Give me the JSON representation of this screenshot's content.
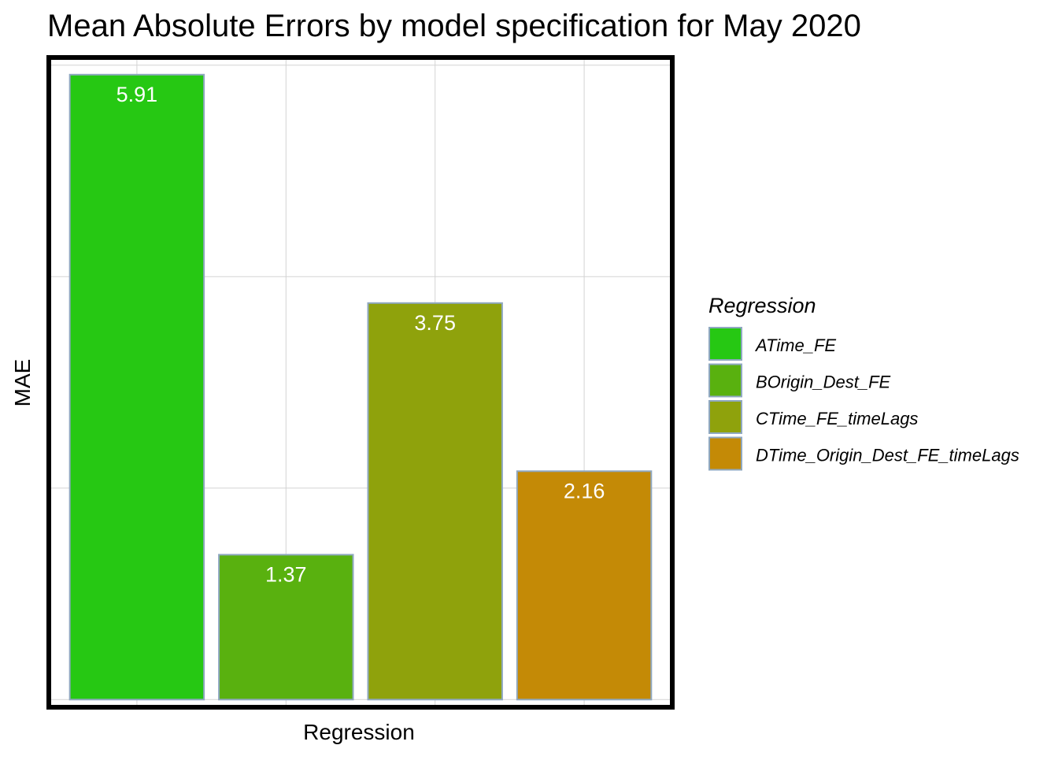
{
  "chart_data": {
    "type": "bar",
    "title": "Mean Absolute Errors by model specification for May 2020",
    "xlabel": "Regression",
    "ylabel": "MAE",
    "categories": [
      "ATime_FE",
      "BOrigin_Dest_FE",
      "CTime_FE_timeLags",
      "DTime_Origin_Dest_FE_timeLags"
    ],
    "values": [
      5.91,
      1.37,
      3.75,
      2.16
    ],
    "value_labels": [
      "5.91",
      "1.37",
      "3.75",
      "2.16"
    ],
    "colors": [
      "#26c813",
      "#59b10f",
      "#8fa20c",
      "#c48a06"
    ],
    "ylim": [
      -0.05,
      6.05
    ],
    "y_gridlines": [
      0,
      2,
      4,
      6
    ],
    "grid": true,
    "axis_ticks_shown": false,
    "legend": {
      "title": "Regression",
      "placement": "right",
      "entries": [
        "ATime_FE",
        "BOrigin_Dest_FE",
        "CTime_FE_timeLags",
        "DTime_Origin_Dest_FE_timeLags"
      ]
    },
    "colors_theme": {
      "bar_outline": "#8fa8c0",
      "panel_border": "#000000",
      "grid": "#d3d3d3",
      "label_text": "#ffffff"
    }
  }
}
